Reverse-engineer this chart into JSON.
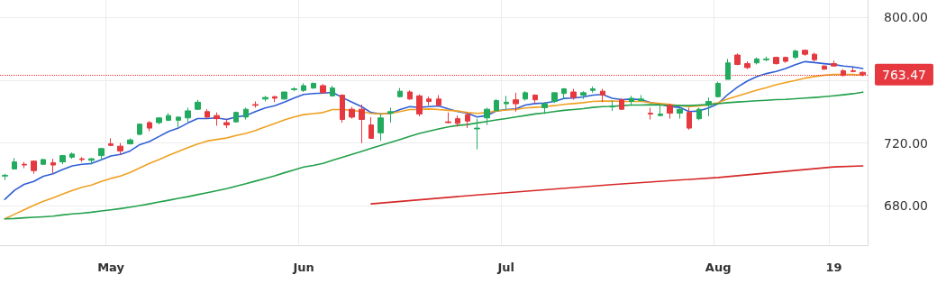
{
  "chart_data": {
    "type": "candlestick",
    "categories": [
      null,
      null,
      null,
      null,
      null,
      null,
      null,
      null,
      null,
      null,
      null,
      "May",
      null,
      null,
      null,
      null,
      null,
      null,
      null,
      null,
      null,
      null,
      null,
      null,
      null,
      null,
      null,
      null,
      null,
      null,
      null,
      "Jun",
      null,
      null,
      null,
      null,
      null,
      null,
      null,
      null,
      null,
      null,
      null,
      null,
      null,
      null,
      null,
      null,
      null,
      null,
      null,
      null,
      "Jul",
      null,
      null,
      null,
      null,
      null,
      null,
      null,
      null,
      null,
      null,
      null,
      null,
      null,
      null,
      null,
      null,
      null,
      null,
      null,
      null,
      null,
      "Aug",
      null,
      null,
      null,
      null,
      null,
      null,
      null,
      null,
      null,
      null,
      null,
      "19",
      null,
      null,
      null
    ],
    "series": [
      {
        "ohlc": [
          [
            699,
            700.5,
            696.5,
            699.5
          ],
          [
            703.5,
            710.5,
            703.5,
            708
          ],
          [
            706.5,
            708,
            704,
            706
          ],
          [
            708.5,
            709,
            700.5,
            702.5
          ],
          [
            706.5,
            710,
            706,
            709.5
          ],
          [
            707.5,
            710,
            700.5,
            706
          ],
          [
            708,
            712.5,
            706.5,
            712
          ],
          [
            711,
            714,
            710,
            713
          ],
          [
            710,
            711,
            708,
            709.5
          ],
          [
            709,
            710.5,
            706.5,
            710
          ],
          [
            712,
            717,
            709,
            716.5
          ],
          [
            719.5,
            723,
            718,
            718.5
          ],
          [
            718,
            720,
            712.5,
            715
          ],
          [
            719.5,
            723,
            719,
            722
          ],
          [
            725.5,
            732.5,
            725,
            732
          ],
          [
            733,
            734,
            727.5,
            729.5
          ],
          [
            733,
            736.5,
            732,
            736
          ],
          [
            734.5,
            739,
            734,
            737.5
          ],
          [
            734.5,
            737,
            730,
            736.5
          ],
          [
            736,
            742.5,
            733.5,
            740.5
          ],
          [
            741.5,
            747.5,
            741,
            746
          ],
          [
            740,
            741.5,
            735.5,
            736.5
          ],
          [
            737.5,
            739.5,
            731,
            735.5
          ],
          [
            733,
            735.5,
            729.5,
            731.5
          ],
          [
            733.5,
            740,
            733,
            739.5
          ],
          [
            736.5,
            742.5,
            735,
            741.5
          ],
          [
            744.5,
            746.5,
            742.5,
            744
          ],
          [
            748,
            750,
            746.5,
            749
          ],
          [
            749.5,
            750,
            746,
            748.5
          ],
          [
            748,
            752.5,
            747.5,
            752.5
          ],
          [
            754,
            755.5,
            753,
            754.5
          ],
          [
            753.5,
            758,
            752.5,
            756.5
          ],
          [
            755,
            758.5,
            754.5,
            758
          ],
          [
            756.5,
            757.5,
            752,
            752
          ],
          [
            750,
            756.5,
            749.5,
            755
          ],
          [
            750.5,
            751,
            733,
            735
          ],
          [
            741.5,
            743,
            735.5,
            736.5
          ],
          [
            741.5,
            744.5,
            720,
            735
          ],
          [
            731.5,
            736.5,
            723,
            723
          ],
          [
            726.5,
            738.5,
            721.5,
            736
          ],
          [
            739,
            742.5,
            733,
            740
          ],
          [
            749.5,
            755,
            749,
            753
          ],
          [
            752.5,
            753.5,
            747.5,
            748
          ],
          [
            750,
            751,
            737,
            738.5
          ],
          [
            748,
            749.5,
            744,
            746.5
          ],
          [
            748,
            750.5,
            744,
            744
          ],
          [
            733.5,
            739.5,
            732.5,
            733
          ],
          [
            735.5,
            737.5,
            730.5,
            732.5
          ],
          [
            738,
            739.5,
            729.5,
            734
          ],
          [
            729,
            735.5,
            716,
            729.5
          ],
          [
            736,
            742.5,
            731.5,
            741.5
          ],
          [
            740.5,
            748,
            740.5,
            747
          ],
          [
            745,
            750,
            741.5,
            746
          ],
          [
            747.5,
            752,
            740,
            745
          ],
          [
            748,
            753,
            747,
            752
          ],
          [
            750.5,
            751,
            745,
            747.5
          ],
          [
            742.5,
            746,
            738.5,
            745
          ],
          [
            746.5,
            752,
            745.5,
            752
          ],
          [
            751.5,
            755,
            748,
            754.5
          ],
          [
            752.5,
            754.5,
            747.5,
            749
          ],
          [
            750.5,
            753,
            748,
            752
          ],
          [
            753.5,
            756,
            752,
            754.5
          ],
          [
            753,
            754.5,
            746,
            750.5
          ],
          [
            743,
            747,
            740.5,
            743.5
          ],
          [
            747.5,
            748.5,
            741,
            741.5
          ],
          [
            746.5,
            750,
            744,
            748.5
          ],
          [
            747,
            750.5,
            746.5,
            748
          ],
          [
            739,
            742.5,
            735,
            738.5
          ],
          [
            737.5,
            744.5,
            737,
            738.5
          ],
          [
            744,
            745,
            735.5,
            739
          ],
          [
            739,
            742.5,
            735.5,
            741.5
          ],
          [
            739.5,
            742.5,
            728.5,
            729.5
          ],
          [
            735.5,
            742.5,
            734.5,
            741.5
          ],
          [
            744,
            749,
            737,
            746.5
          ],
          [
            749.5,
            759,
            749,
            758
          ],
          [
            760.5,
            773.5,
            760.5,
            771
          ],
          [
            776,
            777,
            769.5,
            770
          ],
          [
            770.5,
            772,
            767,
            768
          ],
          [
            771,
            774.5,
            770,
            773.5
          ],
          [
            773,
            775,
            772,
            773.5
          ],
          [
            774.5,
            775,
            770,
            770.5
          ],
          [
            774.5,
            775,
            771,
            772
          ],
          [
            774.5,
            779.5,
            773.5,
            778.5
          ],
          [
            779,
            779.5,
            775.5,
            776.5
          ],
          [
            776.5,
            777.5,
            772,
            773
          ],
          [
            769,
            769.5,
            766.5,
            767
          ],
          [
            770.5,
            772.5,
            768.5,
            769
          ],
          [
            766,
            767,
            762.5,
            763
          ],
          [
            766,
            768,
            765,
            765.5
          ],
          [
            765,
            765.5,
            762.5,
            763.47
          ]
        ],
        "colors": [
          "#22ab5e",
          "#22ab5e",
          "#e5393f",
          "#e5393f",
          "#22ab5e",
          "#e5393f",
          "#22ab5e",
          "#22ab5e",
          "#e5393f",
          "#22ab5e",
          "#22ab5e",
          "#e5393f",
          "#e5393f",
          "#22ab5e",
          "#22ab5e",
          "#e5393f",
          "#22ab5e",
          "#22ab5e",
          "#22ab5e",
          "#22ab5e",
          "#22ab5e",
          "#e5393f",
          "#e5393f",
          "#e5393f",
          "#22ab5e",
          "#22ab5e",
          "#e5393f",
          "#22ab5e",
          "#e5393f",
          "#22ab5e",
          "#22ab5e",
          "#22ab5e",
          "#22ab5e",
          "#e5393f",
          "#22ab5e",
          "#e5393f",
          "#e5393f",
          "#e5393f",
          "#e5393f",
          "#22ab5e",
          "#22ab5e",
          "#22ab5e",
          "#e5393f",
          "#e5393f",
          "#e5393f",
          "#e5393f",
          "#e5393f",
          "#e5393f",
          "#e5393f",
          "#22ab5e",
          "#22ab5e",
          "#22ab5e",
          "#22ab5e",
          "#e5393f",
          "#22ab5e",
          "#e5393f",
          "#22ab5e",
          "#22ab5e",
          "#22ab5e",
          "#e5393f",
          "#22ab5e",
          "#22ab5e",
          "#e5393f",
          "#22ab5e",
          "#e5393f",
          "#22ab5e",
          "#22ab5e",
          "#e5393f",
          "#22ab5e",
          "#e5393f",
          "#22ab5e",
          "#e5393f",
          "#22ab5e",
          "#22ab5e",
          "#22ab5e",
          "#22ab5e",
          "#e5393f",
          "#e5393f",
          "#22ab5e",
          "#22ab5e",
          "#e5393f",
          "#e5393f",
          "#22ab5e",
          "#e5393f",
          "#e5393f",
          "#e5393f",
          "#e5393f",
          "#e5393f",
          "#e5393f",
          "#e5393f"
        ]
      },
      {
        "type": "line",
        "color": "#2f5fd6",
        "values": [
          684.2,
          689.9,
          693.7,
          695.6,
          698.9,
          700.4,
          703.2,
          705.5,
          706.5,
          707,
          709.3,
          711.8,
          712.8,
          715,
          719,
          721,
          724.2,
          727.4,
          729.5,
          732.8,
          735.6,
          735.6,
          736,
          735,
          736.6,
          737.5,
          740,
          742.3,
          743.8,
          746.1,
          748.6,
          750.9,
          751.5,
          751.8,
          752.2,
          749,
          746.1,
          743.2,
          739.4,
          738.5,
          738.9,
          741.3,
          743.2,
          742.7,
          743.2,
          743.6,
          741.7,
          740,
          738.9,
          736.6,
          737.5,
          740.4,
          741.3,
          741.7,
          744.2,
          745.1,
          745.5,
          746.5,
          748.4,
          748.6,
          749.3,
          750.5,
          750.9,
          748.5,
          747.6,
          748,
          747.6,
          745.7,
          744.6,
          743.2,
          742.7,
          740,
          740.4,
          742.3,
          745.1,
          750.9,
          755.6,
          759.4,
          762.3,
          764.2,
          765.5,
          767.4,
          769.9,
          771.8,
          771.2,
          770.5,
          769.9,
          769,
          768.4,
          767.4
        ]
      },
      {
        "type": "line",
        "color": "#f0a020",
        "values": [
          671.8,
          674.7,
          677.5,
          680.4,
          682.9,
          685.1,
          687.6,
          689.9,
          691.8,
          693.3,
          695.6,
          697.5,
          699,
          701.3,
          704.2,
          707,
          709.5,
          712.2,
          714.7,
          717.1,
          719.4,
          721.3,
          722.3,
          723.2,
          724.8,
          726.1,
          728,
          730.3,
          732.4,
          734.7,
          736.6,
          738.1,
          738.7,
          739.4,
          741.3,
          741.3,
          740.8,
          740,
          738.9,
          738.5,
          738.9,
          740,
          741.3,
          741.3,
          741.7,
          741.3,
          740.8,
          740.4,
          739.4,
          738.9,
          739.4,
          740.4,
          741,
          741.3,
          742.3,
          742.7,
          743.2,
          743.8,
          744.6,
          745.1,
          745.7,
          746.5,
          746.7,
          746.8,
          746.5,
          746.5,
          746.5,
          745.7,
          745.1,
          744.6,
          743.8,
          743.2,
          743.6,
          744.2,
          745.7,
          748,
          749.9,
          751.8,
          753.7,
          755.2,
          757.1,
          758.5,
          759.8,
          761.3,
          762.3,
          763.2,
          763.6,
          763.6,
          763.6,
          763.2
        ]
      },
      {
        "type": "line",
        "color": "#22a04b",
        "values": [
          671.8,
          672,
          672.4,
          672.8,
          673.1,
          673.5,
          674.3,
          674.9,
          675.4,
          676,
          676.8,
          677.5,
          678.3,
          679.2,
          680.2,
          681.3,
          682.5,
          683.6,
          684.8,
          685.9,
          687.2,
          688.4,
          689.7,
          691,
          692.6,
          694.1,
          695.8,
          697.5,
          699.2,
          701.1,
          702.9,
          704.8,
          705.8,
          707,
          709,
          710.9,
          712.8,
          714.7,
          716.6,
          718.5,
          720.4,
          722.3,
          724.2,
          726.1,
          727.6,
          729,
          730.3,
          731.2,
          731.8,
          732.8,
          733.7,
          734.7,
          735.6,
          736.6,
          737.5,
          738.5,
          739.2,
          740,
          740.8,
          741.3,
          741.9,
          742.7,
          743.2,
          743.3,
          743.8,
          744.2,
          744.2,
          744.4,
          744.2,
          744,
          743.8,
          743.8,
          744.2,
          744.6,
          745,
          745.7,
          746.1,
          746.5,
          746.9,
          747.2,
          747.6,
          747.8,
          748.2,
          748.6,
          749,
          749.5,
          750.1,
          750.7,
          751.4,
          752.4
        ]
      },
      {
        "type": "line",
        "color": "#d62828",
        "values": [
          null,
          null,
          null,
          null,
          null,
          null,
          null,
          null,
          null,
          null,
          null,
          null,
          null,
          null,
          null,
          null,
          null,
          null,
          null,
          null,
          null,
          null,
          null,
          null,
          null,
          null,
          null,
          null,
          null,
          null,
          null,
          null,
          null,
          null,
          null,
          null,
          null,
          null,
          681.3,
          null,
          null,
          null,
          null,
          null,
          null,
          null,
          null,
          null,
          null,
          687,
          null,
          null,
          null,
          null,
          null,
          null,
          null,
          null,
          null,
          null,
          null,
          null,
          null,
          693.6,
          null,
          null,
          null,
          null,
          null,
          null,
          null,
          null,
          null,
          null,
          698.1,
          null,
          null,
          null,
          null,
          null,
          null,
          null,
          null,
          null,
          null,
          null,
          704.8,
          null,
          null,
          705.5
        ]
      }
    ],
    "ylim": [
      655,
      811
    ],
    "yticks": [
      {
        "value": 680,
        "label": "680.00"
      },
      {
        "value": 720,
        "label": "720.00"
      },
      {
        "value": 760,
        "label": null
      },
      {
        "value": 800,
        "label": "800.00"
      }
    ],
    "ref_lines": [
      {
        "axis": "y",
        "value": 763.47,
        "label": "763.47",
        "color": "#e5393f",
        "line_style": "dotted"
      }
    ],
    "grid": true,
    "marker": "none",
    "line_style": "solid"
  }
}
